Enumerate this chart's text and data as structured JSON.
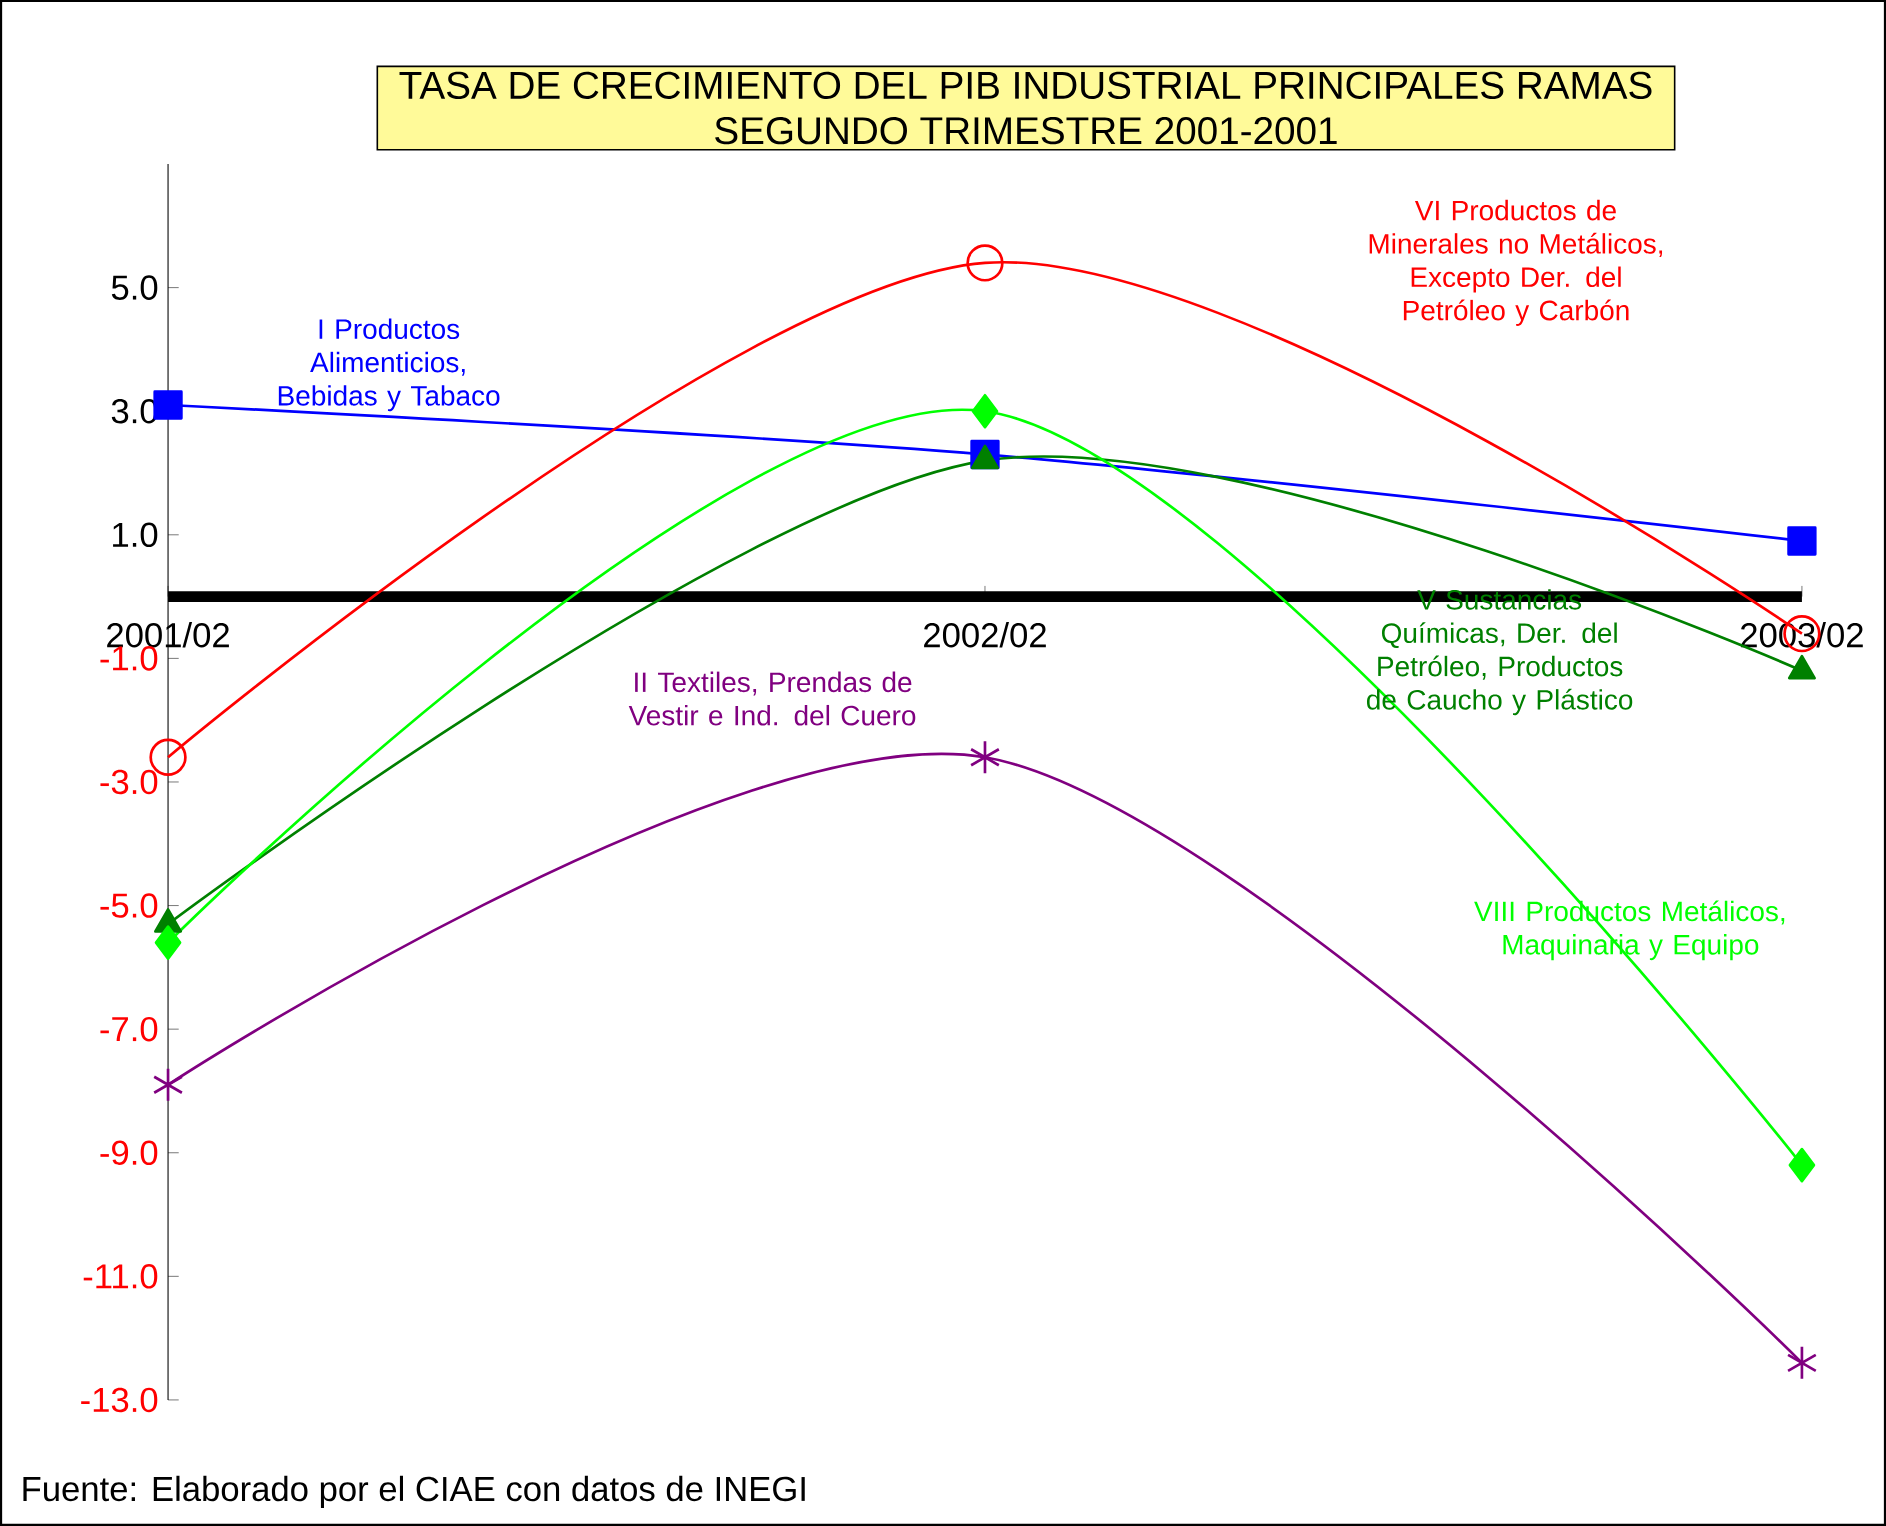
{
  "chart_data": {
    "type": "line",
    "title": "TASA DE CRECIMIENTO DEL PIB INDUSTRIAL PRINCIPALES RAMAS",
    "subtitle": "SEGUNDO TRIMESTRE 2001-2001",
    "categories": [
      "2001/02",
      "2002/02",
      "2003/02"
    ],
    "series": [
      {
        "name": "I Productos Alimenticios, Bebidas y Tabaco",
        "color": "#0000ff",
        "marker": "square",
        "values": [
          3.1,
          2.3,
          0.9
        ]
      },
      {
        "name": "VI Productos de Minerales no Metálicos, Excepto Der. del Petróleo y Carbón",
        "color": "#ff0000",
        "marker": "circle",
        "values": [
          -2.6,
          5.4,
          -0.6
        ]
      },
      {
        "name": "V Sustancias Químicas, Der. del Petróleo, Productos de Caucho y Plástico",
        "color": "#008000",
        "marker": "triangle",
        "values": [
          -5.3,
          2.2,
          -1.2
        ]
      },
      {
        "name": "VIII Productos Metálicos, Maquinaria y Equipo",
        "color": "#00ff00",
        "marker": "diamond",
        "values": [
          -5.6,
          3.0,
          -9.2
        ]
      },
      {
        "name": "II Textiles, Prendas de Vestir e Ind. del Cuero",
        "color": "#800080",
        "marker": "cross",
        "values": [
          -7.9,
          -2.6,
          -12.4
        ]
      }
    ],
    "ylim": [
      -13,
      7
    ],
    "yticks": [
      {
        "value": -13,
        "label": "-13.0"
      },
      {
        "value": -11,
        "label": "-11.0"
      },
      {
        "value": -9,
        "label": "-9.0"
      },
      {
        "value": -7,
        "label": "-7.0"
      },
      {
        "value": -5,
        "label": "-5.0"
      },
      {
        "value": -3,
        "label": "-3.0"
      },
      {
        "value": -1,
        "label": "-1.0"
      },
      {
        "value": 1,
        "label": "1.0"
      },
      {
        "value": 3,
        "label": "3.0"
      },
      {
        "value": 5,
        "label": "5.0"
      }
    ],
    "grid": false,
    "legend": false,
    "annotations": [
      "Fuente: Elaborado por el CIAE con datos de INEGI"
    ]
  }
}
